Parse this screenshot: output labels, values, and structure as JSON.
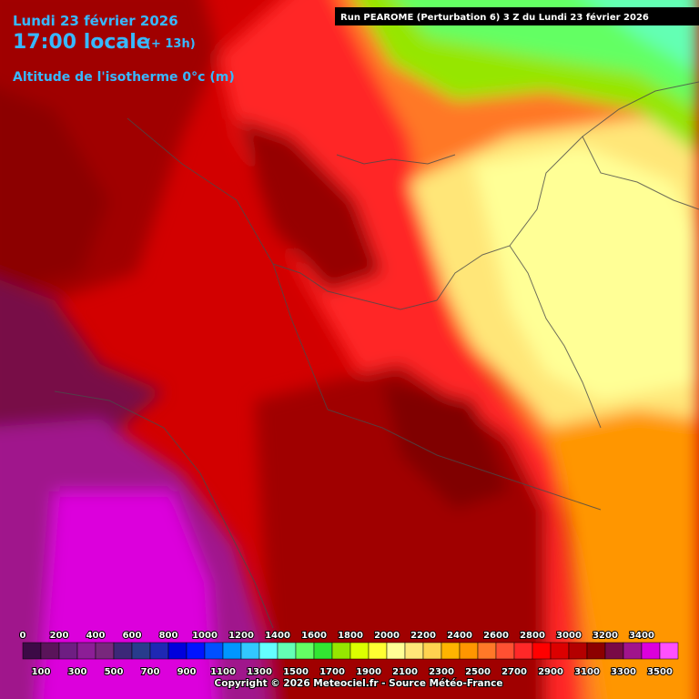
{
  "header": {
    "date": "Lundi 23 février 2026",
    "time": "17:00 locale",
    "lead": "(+ 13h)",
    "parameter": "Altitude de l'isotherme 0°c (m)"
  },
  "run": "Run PEAROME (Perturbation 6) 3 Z du Lundi 23 février 2026",
  "legend": {
    "values": [
      0,
      100,
      200,
      300,
      400,
      500,
      600,
      700,
      800,
      900,
      1000,
      1100,
      1200,
      1300,
      1400,
      1500,
      1600,
      1700,
      1800,
      1900,
      2000,
      2100,
      2200,
      2300,
      2400,
      2500,
      2600,
      2700,
      2800,
      2900,
      3000,
      3100,
      3200,
      3300,
      3400,
      3500
    ],
    "colors": [
      "#3c0a46",
      "#5a145a",
      "#6e1e82",
      "#8c1e96",
      "#78287c",
      "#3c2878",
      "#283c8c",
      "#1e28b4",
      "#0000dc",
      "#0014ff",
      "#0050ff",
      "#0096ff",
      "#32c8ff",
      "#64ffff",
      "#64ffb4",
      "#64ff64",
      "#32e632",
      "#96e600",
      "#dcff00",
      "#ffff32",
      "#ffff96",
      "#ffe678",
      "#ffd250",
      "#ffb400",
      "#ff9600",
      "#ff7828",
      "#ff5032",
      "#ff2828",
      "#ff0000",
      "#dc0000",
      "#b40000",
      "#8c0000",
      "#780a46",
      "#a0148c",
      "#dc00dc",
      "#ff50ff"
    ]
  },
  "copyright": "Copyright © 2026 Meteociel.fr - Source Météo-France"
}
